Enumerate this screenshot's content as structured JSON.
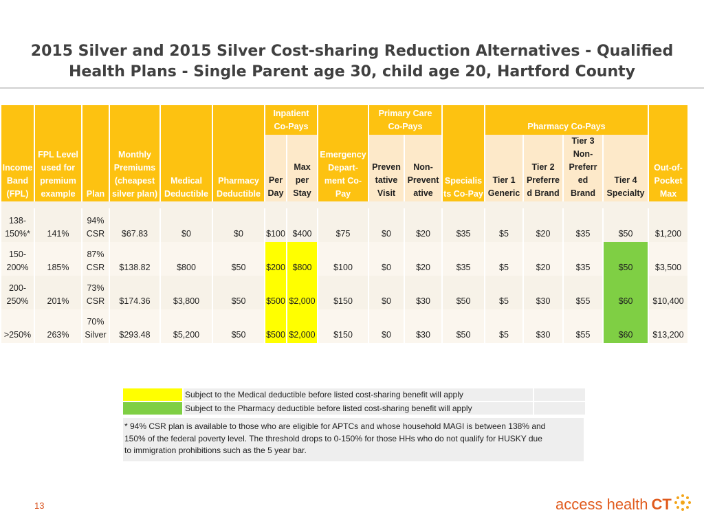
{
  "title": {
    "line1": "2015 Silver and 2015 Silver Cost-sharing Reduction Alternatives - Qualified",
    "line2": "Health Plans - Single Parent age 30, child age 20, Hartford County"
  },
  "table": {
    "headers": {
      "income_band": [
        "Income",
        "Band",
        "(FPL)"
      ],
      "fpl_level": [
        "FPL Level",
        "used for",
        "premium",
        "example"
      ],
      "plan": "Plan",
      "monthly_premiums": [
        "Monthly",
        "Premiums",
        "(cheapest",
        "silver plan)"
      ],
      "medical_deductible": [
        "Medical",
        "Deductible"
      ],
      "pharmacy_deductible": [
        "Pharmacy",
        "Deductible"
      ],
      "inpatient_group": [
        "Inpatient",
        "Co-Pays"
      ],
      "inpatient_per_day": [
        "Per",
        "Day"
      ],
      "inpatient_max_per_stay": [
        "Max",
        "per",
        "Stay"
      ],
      "emergency": [
        "Emergency",
        "Depart-",
        "ment Co-",
        "Pay"
      ],
      "primary_care_group": [
        "Primary Care",
        "Co-Pays"
      ],
      "preventative": [
        "Preven",
        "tative",
        "Visit"
      ],
      "non_preventative": [
        "Non-",
        "Prevent",
        "ative"
      ],
      "specialist": [
        "Specialis",
        "ts Co-Pay"
      ],
      "pharmacy_group": "Pharmacy Co-Pays",
      "tier1": [
        "Tier 1",
        "Generic"
      ],
      "tier2": [
        "Tier 2",
        "Preferre",
        "d Brand"
      ],
      "tier3": [
        "Tier 3",
        "Non-",
        "Preferr",
        "ed",
        "Brand"
      ],
      "tier4": [
        "Tier 4",
        "Specialty"
      ],
      "oop": [
        "Out-of-",
        "Pocket",
        "Max"
      ]
    },
    "rows": [
      {
        "income_band": [
          "138-",
          "150%*"
        ],
        "fpl": "141%",
        "plan": [
          "94%",
          "CSR"
        ],
        "premium": "$67.83",
        "med_ded": "$0",
        "rx_ded": "$0",
        "per_day": "$100",
        "max_stay": "$400",
        "er": "$75",
        "prev": "$0",
        "nonprev": "$20",
        "specialist": "$35",
        "tier1": "$5",
        "tier2": "$20",
        "tier3": "$35",
        "tier4": "$50",
        "oop": "$1,200"
      },
      {
        "income_band": [
          "150-",
          "200%"
        ],
        "fpl": "185%",
        "plan": [
          "87%",
          "CSR"
        ],
        "premium": "$138.82",
        "med_ded": "$800",
        "rx_ded": "$50",
        "per_day": "$200",
        "max_stay": "$800",
        "er": "$100",
        "prev": "$0",
        "nonprev": "$20",
        "specialist": "$35",
        "tier1": "$5",
        "tier2": "$20",
        "tier3": "$35",
        "tier4": "$50",
        "oop": "$3,500"
      },
      {
        "income_band": [
          "200-",
          "250%"
        ],
        "fpl": "201%",
        "plan": [
          "73%",
          "CSR"
        ],
        "premium": "$174.36",
        "med_ded": "$3,800",
        "rx_ded": "$50",
        "per_day": "$500",
        "max_stay": "$2,000",
        "er": "$150",
        "prev": "$0",
        "nonprev": "$30",
        "specialist": "$50",
        "tier1": "$5",
        "tier2": "$30",
        "tier3": "$55",
        "tier4": "$60",
        "oop": "$10,400"
      },
      {
        "income_band": [
          ">250%"
        ],
        "fpl": "263%",
        "plan": [
          "70%",
          "Silver"
        ],
        "premium": "$293.48",
        "med_ded": "$5,200",
        "rx_ded": "$50",
        "per_day": "$500",
        "max_stay": "$2,000",
        "er": "$150",
        "prev": "$0",
        "nonprev": "$30",
        "specialist": "$50",
        "tier1": "$5",
        "tier2": "$30",
        "tier3": "$55",
        "tier4": "$60",
        "oop": "$13,200"
      }
    ]
  },
  "legend": {
    "medical_text": "Subject to the Medical deductible before listed cost-sharing benefit will apply",
    "pharmacy_text": "Subject to the Pharmacy deductible before listed cost-sharing benefit will apply",
    "medical_color": "#ffff00",
    "pharmacy_color": "#7fcf44",
    "footnote_lines": [
      "* 94% CSR plan is available to those who are eligible for APTCs and whose household MAGI is between 138% and",
      "150% of the federal poverty level. The threshold drops to 0-150% for those HHs who do not qualify for HUSKY due",
      "to immigration prohibitions such as the 5 year bar."
    ]
  },
  "page_number": "13",
  "brand": {
    "name": "access health",
    "suffix": "CT",
    "primary_color": "#e05a1c",
    "accent_color": "#f2a51a",
    "icon": "sunburst-icon"
  },
  "colors": {
    "header_gold": "#fdc211",
    "subheader": "#fde9c9",
    "row_shade": "#f7f2e8"
  }
}
